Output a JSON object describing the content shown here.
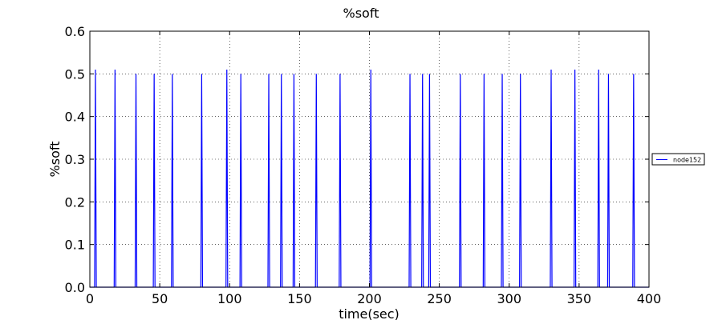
{
  "chart_data": {
    "type": "line",
    "title": "%soft",
    "xlabel": "time(sec)",
    "ylabel": "%soft",
    "xlim": [
      0,
      400
    ],
    "ylim": [
      0,
      0.6
    ],
    "xticks": [
      0,
      50,
      100,
      150,
      200,
      250,
      300,
      350,
      400
    ],
    "yticks": [
      0.0,
      0.1,
      0.2,
      0.3,
      0.4,
      0.5,
      0.6
    ],
    "xtick_labels": [
      "0",
      "50",
      "100",
      "150",
      "200",
      "250",
      "300",
      "350",
      "400"
    ],
    "ytick_labels": [
      "0.0",
      "0.1",
      "0.2",
      "0.3",
      "0.4",
      "0.5",
      "0.6"
    ],
    "grid": true,
    "legend_position": "right",
    "series": [
      {
        "name": "node152",
        "color": "#0000ff",
        "spikes": [
          {
            "x": 4,
            "y": 0.51
          },
          {
            "x": 18,
            "y": 0.51
          },
          {
            "x": 33,
            "y": 0.5
          },
          {
            "x": 46,
            "y": 0.5
          },
          {
            "x": 59,
            "y": 0.5
          },
          {
            "x": 80,
            "y": 0.5
          },
          {
            "x": 98,
            "y": 0.51
          },
          {
            "x": 108,
            "y": 0.5
          },
          {
            "x": 128,
            "y": 0.5
          },
          {
            "x": 137,
            "y": 0.5
          },
          {
            "x": 146,
            "y": 0.5
          },
          {
            "x": 162,
            "y": 0.5
          },
          {
            "x": 179,
            "y": 0.5
          },
          {
            "x": 201,
            "y": 0.51
          },
          {
            "x": 229,
            "y": 0.5
          },
          {
            "x": 238,
            "y": 0.5
          },
          {
            "x": 243,
            "y": 0.5
          },
          {
            "x": 265,
            "y": 0.5
          },
          {
            "x": 282,
            "y": 0.5
          },
          {
            "x": 295,
            "y": 0.5
          },
          {
            "x": 308,
            "y": 0.5
          },
          {
            "x": 330,
            "y": 0.51
          },
          {
            "x": 347,
            "y": 0.51
          },
          {
            "x": 364,
            "y": 0.51
          },
          {
            "x": 371,
            "y": 0.5
          },
          {
            "x": 389,
            "y": 0.5
          }
        ]
      }
    ]
  }
}
